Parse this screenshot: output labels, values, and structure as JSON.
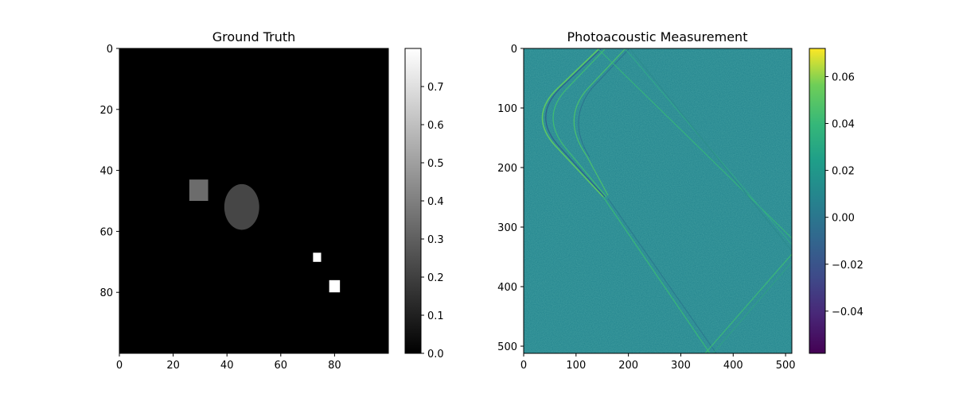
{
  "chart_data": [
    {
      "type": "heatmap",
      "title": "Ground Truth",
      "colormap": "gray",
      "image_size": [
        100,
        100
      ],
      "xlim": [
        0,
        100
      ],
      "ylim": [
        100,
        0
      ],
      "xticks": [
        0,
        20,
        40,
        60,
        80
      ],
      "yticks": [
        0,
        20,
        40,
        60,
        80
      ],
      "colorbar": {
        "min": 0.0,
        "max": 0.8,
        "ticks": [
          "0.0",
          "0.1",
          "0.2",
          "0.3",
          "0.4",
          "0.5",
          "0.6",
          "0.7"
        ]
      },
      "regions": [
        {
          "shape": "rect",
          "x": [
            26,
            33
          ],
          "y": [
            43,
            50
          ],
          "value": 0.34
        },
        {
          "shape": "ellipse",
          "cx": 45.5,
          "cy": 52,
          "rx": 6.5,
          "ry": 7.5,
          "value": 0.22
        },
        {
          "shape": "rect",
          "x": [
            72,
            75
          ],
          "y": [
            67,
            70
          ],
          "value": 0.8
        },
        {
          "shape": "rect",
          "x": [
            78,
            82
          ],
          "y": [
            76,
            80
          ],
          "value": 0.8
        }
      ]
    },
    {
      "type": "heatmap",
      "title": "Photoacoustic Measurement",
      "colormap": "viridis",
      "image_size": [
        512,
        512
      ],
      "xlim": [
        0,
        512
      ],
      "ylim": [
        512,
        0
      ],
      "xticks": [
        0,
        100,
        200,
        300,
        400,
        500
      ],
      "yticks": [
        0,
        100,
        200,
        300,
        400,
        500
      ],
      "colorbar": {
        "min": -0.058,
        "max": 0.072,
        "ticks": [
          "−0.04",
          "−0.02",
          "0.00",
          "0.02",
          "0.04",
          "0.06"
        ]
      },
      "background_value": 0.0
    }
  ]
}
